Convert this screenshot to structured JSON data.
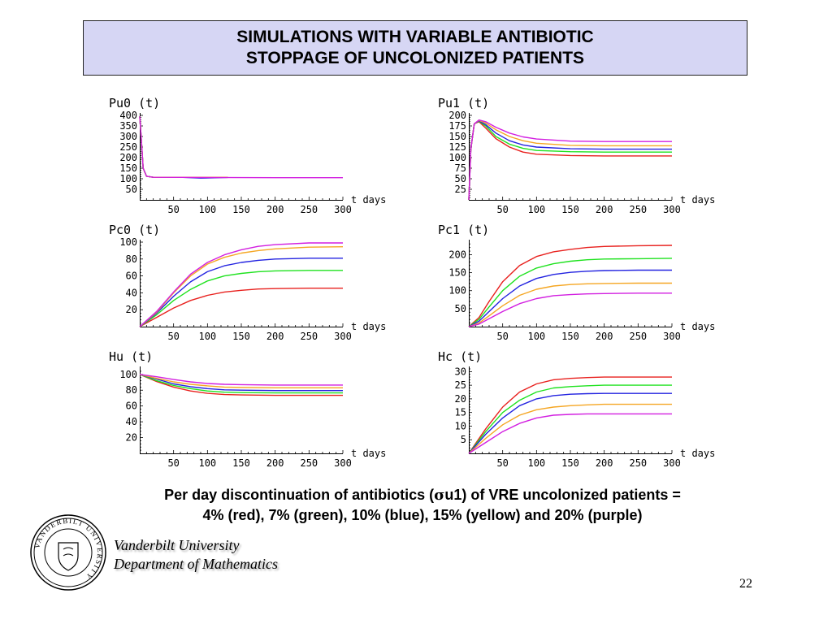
{
  "slide": {
    "title_line1": "SIMULATIONS WITH VARIABLE ANTIBIOTIC",
    "title_line2": "STOPPAGE OF UNCOLONIZED PATIENTS",
    "caption_prefix": "Per day discontinuation of antibiotics (",
    "caption_symbol": "σ",
    "caption_line1_rest": "u1) of VRE uncolonized patients  =",
    "caption_line2": "4% (red), 7% (green), 10% (blue), 15% (yellow) and 20% (purple)",
    "university_line1": "Vanderbilt University",
    "university_line2": "Department of Mathematics",
    "page_number": "22",
    "logo_text": "VANDERBILT UNIVERSITY"
  },
  "series_colors": {
    "red": "#e8211e",
    "green": "#1fe21f",
    "blue": "#2323e0",
    "yellow": "#f5a623",
    "purple": "#d21fe0"
  },
  "chart_data": [
    {
      "id": "pu0",
      "type": "line",
      "ylabel": "Pu0 (t)",
      "xlabel": "t days",
      "xlim": [
        0,
        300
      ],
      "ylim": [
        0,
        400
      ],
      "xticks": [
        50,
        100,
        150,
        200,
        250,
        300
      ],
      "yticks": [
        50,
        100,
        150,
        200,
        250,
        300,
        350,
        400
      ],
      "series": [
        {
          "color": "red",
          "x": [
            0,
            2,
            5,
            10,
            20,
            100,
            130
          ],
          "y": [
            395,
            300,
            150,
            112,
            107,
            107,
            107
          ]
        },
        {
          "color": "green",
          "x": [
            0,
            2,
            5,
            10,
            20,
            100,
            130
          ],
          "y": [
            395,
            300,
            150,
            112,
            107,
            107,
            107
          ]
        },
        {
          "color": "blue",
          "x": [
            0,
            2,
            5,
            10,
            20,
            60,
            90,
            130
          ],
          "y": [
            395,
            300,
            150,
            112,
            107,
            107,
            103,
            106
          ]
        },
        {
          "color": "yellow",
          "x": [
            0,
            2,
            5,
            10,
            20,
            100,
            130
          ],
          "y": [
            395,
            300,
            150,
            112,
            107,
            107,
            107
          ]
        },
        {
          "color": "purple",
          "x": [
            0,
            2,
            5,
            10,
            20,
            100,
            200,
            300
          ],
          "y": [
            395,
            300,
            150,
            112,
            107,
            106,
            105,
            105
          ]
        }
      ]
    },
    {
      "id": "pu1",
      "type": "line",
      "ylabel": "Pu1 (t)",
      "xlabel": "t days",
      "xlim": [
        0,
        300
      ],
      "ylim": [
        0,
        200
      ],
      "xticks": [
        50,
        100,
        150,
        200,
        250,
        300
      ],
      "yticks": [
        25,
        50,
        75,
        100,
        125,
        150,
        175,
        200
      ],
      "series": [
        {
          "color": "red",
          "x": [
            0,
            3,
            8,
            15,
            25,
            40,
            60,
            80,
            100,
            150,
            200,
            300
          ],
          "y": [
            0,
            120,
            180,
            185,
            170,
            145,
            125,
            113,
            108,
            105,
            104,
            104
          ]
        },
        {
          "color": "green",
          "x": [
            0,
            3,
            8,
            15,
            25,
            40,
            60,
            80,
            100,
            150,
            200,
            300
          ],
          "y": [
            0,
            120,
            180,
            186,
            175,
            150,
            132,
            122,
            117,
            114,
            113,
            113
          ]
        },
        {
          "color": "blue",
          "x": [
            0,
            3,
            8,
            15,
            25,
            40,
            60,
            80,
            100,
            150,
            200,
            300
          ],
          "y": [
            0,
            120,
            180,
            187,
            178,
            158,
            140,
            130,
            125,
            121,
            120,
            120
          ]
        },
        {
          "color": "yellow",
          "x": [
            0,
            3,
            8,
            15,
            25,
            40,
            60,
            80,
            100,
            150,
            200,
            300
          ],
          "y": [
            0,
            120,
            180,
            188,
            182,
            166,
            150,
            140,
            134,
            129,
            128,
            128
          ]
        },
        {
          "color": "purple",
          "x": [
            0,
            3,
            8,
            15,
            25,
            40,
            60,
            80,
            100,
            150,
            200,
            300
          ],
          "y": [
            0,
            120,
            180,
            189,
            185,
            172,
            158,
            149,
            144,
            139,
            138,
            138
          ]
        }
      ]
    },
    {
      "id": "pc0",
      "type": "line",
      "ylabel": "Pc0 (t)",
      "xlabel": "t days",
      "xlim": [
        0,
        300
      ],
      "ylim": [
        0,
        100
      ],
      "xticks": [
        50,
        100,
        150,
        200,
        250,
        300
      ],
      "yticks": [
        20,
        40,
        60,
        80,
        100
      ],
      "series": [
        {
          "color": "red",
          "x": [
            0,
            25,
            50,
            75,
            100,
            125,
            150,
            175,
            200,
            250,
            300
          ],
          "y": [
            0,
            11,
            22,
            31,
            37,
            41,
            43,
            44.5,
            45,
            45.5,
            45.5
          ]
        },
        {
          "color": "green",
          "x": [
            0,
            25,
            50,
            75,
            100,
            125,
            150,
            175,
            200,
            250,
            300
          ],
          "y": [
            0,
            14,
            31,
            44,
            54,
            60,
            63,
            65,
            66,
            66.5,
            66.5
          ]
        },
        {
          "color": "blue",
          "x": [
            0,
            25,
            50,
            75,
            100,
            125,
            150,
            175,
            200,
            250,
            300
          ],
          "y": [
            0,
            16,
            36,
            53,
            65,
            72,
            76,
            78.5,
            80,
            81,
            81
          ]
        },
        {
          "color": "yellow",
          "x": [
            0,
            25,
            50,
            75,
            100,
            125,
            150,
            175,
            200,
            250,
            300
          ],
          "y": [
            0,
            17,
            40,
            60,
            74,
            82,
            87,
            90,
            92,
            94,
            94.5
          ]
        },
        {
          "color": "purple",
          "x": [
            0,
            25,
            50,
            75,
            100,
            125,
            150,
            175,
            200,
            250,
            300
          ],
          "y": [
            0,
            18,
            41,
            62,
            76,
            85,
            91,
            95,
            97,
            99,
            99
          ]
        }
      ]
    },
    {
      "id": "pc1",
      "type": "line",
      "ylabel": "Pc1 (t)",
      "xlabel": "t days",
      "xlim": [
        0,
        300
      ],
      "ylim": [
        0,
        235
      ],
      "xticks": [
        50,
        100,
        150,
        200,
        250,
        300
      ],
      "yticks": [
        50,
        100,
        150,
        200
      ],
      "series": [
        {
          "color": "red",
          "x": [
            0,
            15,
            30,
            50,
            75,
            100,
            125,
            150,
            175,
            200,
            250,
            300
          ],
          "y": [
            0,
            25,
            70,
            125,
            170,
            195,
            208,
            215,
            220,
            223,
            225,
            226
          ]
        },
        {
          "color": "green",
          "x": [
            0,
            15,
            30,
            50,
            75,
            100,
            125,
            150,
            175,
            200,
            250,
            300
          ],
          "y": [
            0,
            20,
            55,
            100,
            140,
            163,
            175,
            182,
            186,
            188,
            189,
            190
          ]
        },
        {
          "color": "blue",
          "x": [
            0,
            15,
            30,
            50,
            75,
            100,
            125,
            150,
            175,
            200,
            250,
            300
          ],
          "y": [
            0,
            15,
            42,
            78,
            113,
            134,
            145,
            151,
            154,
            156,
            157,
            157
          ]
        },
        {
          "color": "yellow",
          "x": [
            0,
            15,
            30,
            50,
            75,
            100,
            125,
            150,
            175,
            200,
            250,
            300
          ],
          "y": [
            0,
            10,
            30,
            58,
            87,
            104,
            113,
            117,
            119,
            120,
            121,
            121
          ]
        },
        {
          "color": "purple",
          "x": [
            0,
            15,
            30,
            50,
            75,
            100,
            125,
            150,
            175,
            200,
            250,
            300
          ],
          "y": [
            0,
            7,
            22,
            42,
            64,
            78,
            86,
            89,
            91,
            92,
            93,
            93
          ]
        }
      ]
    },
    {
      "id": "hu",
      "type": "line",
      "ylabel": "Hu (t)",
      "xlabel": "t days",
      "xlim": [
        0,
        300
      ],
      "ylim": [
        0,
        107
      ],
      "xticks": [
        50,
        100,
        150,
        200,
        250,
        300
      ],
      "yticks": [
        20,
        40,
        60,
        80,
        100
      ],
      "series": [
        {
          "color": "red",
          "x": [
            0,
            25,
            50,
            75,
            100,
            125,
            150,
            200,
            250,
            300
          ],
          "y": [
            100,
            91,
            84,
            79,
            76,
            74.5,
            74,
            73.5,
            73.5,
            73.5
          ]
        },
        {
          "color": "green",
          "x": [
            0,
            25,
            50,
            75,
            100,
            125,
            150,
            200,
            250,
            300
          ],
          "y": [
            100,
            92,
            86,
            82,
            79,
            77.5,
            77,
            76.5,
            76.5,
            76.5
          ]
        },
        {
          "color": "blue",
          "x": [
            0,
            25,
            50,
            75,
            100,
            125,
            150,
            200,
            250,
            300
          ],
          "y": [
            100,
            94,
            88,
            84.5,
            82,
            80.5,
            80,
            79.5,
            79.5,
            79.5
          ]
        },
        {
          "color": "yellow",
          "x": [
            0,
            25,
            50,
            75,
            100,
            125,
            150,
            200,
            250,
            300
          ],
          "y": [
            100,
            95,
            90.5,
            87.5,
            85.5,
            84,
            83.5,
            83,
            83,
            83
          ]
        },
        {
          "color": "purple",
          "x": [
            0,
            25,
            50,
            75,
            100,
            125,
            150,
            200,
            250,
            300
          ],
          "y": [
            100,
            97,
            93.5,
            90.5,
            88.5,
            87.5,
            87,
            86.5,
            86.5,
            86.5
          ]
        }
      ]
    },
    {
      "id": "hc",
      "type": "line",
      "ylabel": "Hc (t)",
      "xlabel": "t days",
      "xlim": [
        0,
        300
      ],
      "ylim": [
        0,
        31
      ],
      "xticks": [
        50,
        100,
        150,
        200,
        250,
        300
      ],
      "yticks": [
        5,
        10,
        15,
        20,
        25,
        30
      ],
      "series": [
        {
          "color": "red",
          "x": [
            0,
            25,
            50,
            75,
            100,
            125,
            150,
            175,
            200,
            250,
            300
          ],
          "y": [
            0,
            9,
            17,
            22.5,
            25.5,
            27,
            27.5,
            27.8,
            28,
            28,
            28
          ]
        },
        {
          "color": "green",
          "x": [
            0,
            25,
            50,
            75,
            100,
            125,
            150,
            175,
            200,
            250,
            300
          ],
          "y": [
            0,
            8,
            15,
            19.5,
            22.5,
            24,
            24.5,
            24.8,
            25,
            25,
            25
          ]
        },
        {
          "color": "blue",
          "x": [
            0,
            25,
            50,
            75,
            100,
            125,
            150,
            175,
            200,
            250,
            300
          ],
          "y": [
            0,
            7,
            13,
            17.5,
            20,
            21.2,
            21.7,
            21.9,
            22,
            22,
            22
          ]
        },
        {
          "color": "yellow",
          "x": [
            0,
            25,
            50,
            75,
            100,
            125,
            150,
            175,
            200,
            250,
            300
          ],
          "y": [
            0,
            5.5,
            10.5,
            14,
            16,
            17,
            17.5,
            17.8,
            18,
            18,
            18
          ]
        },
        {
          "color": "purple",
          "x": [
            0,
            25,
            50,
            75,
            100,
            125,
            150,
            175,
            200,
            250,
            300
          ],
          "y": [
            0,
            4,
            8,
            11,
            13,
            14,
            14.3,
            14.5,
            14.5,
            14.5,
            14.5
          ]
        }
      ]
    }
  ]
}
